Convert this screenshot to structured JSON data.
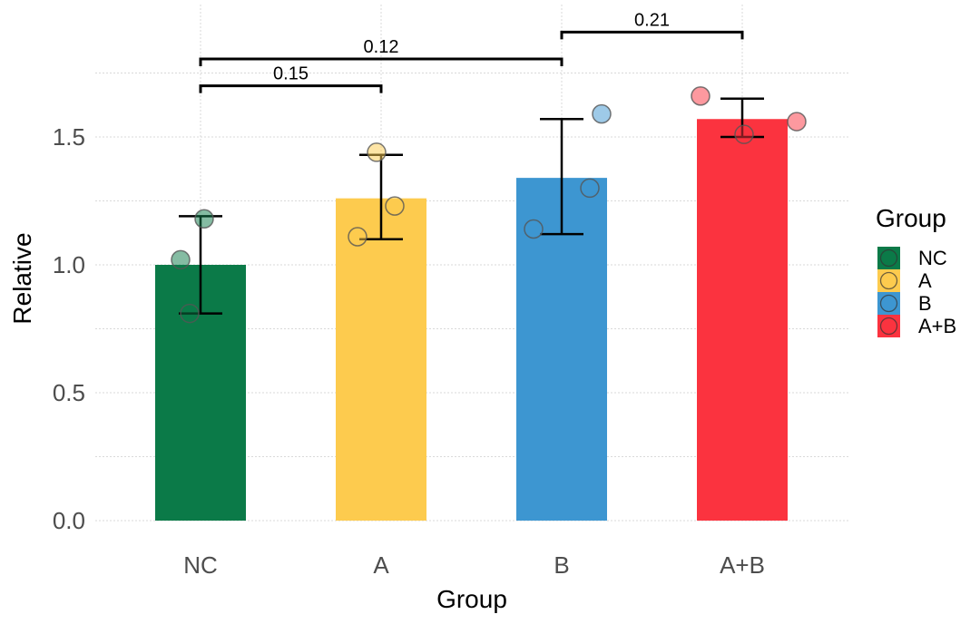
{
  "chart_data": {
    "type": "bar",
    "title": "",
    "xlabel": "Group",
    "ylabel": "Relative",
    "categories": [
      "NC",
      "A",
      "B",
      "A+B"
    ],
    "colors": [
      "#0b7a48",
      "#fdcb4e",
      "#3d96d1",
      "#fb333f"
    ],
    "values": [
      1.0,
      1.26,
      1.34,
      1.57
    ],
    "error_bars": [
      [
        0.81,
        1.19
      ],
      [
        1.1,
        1.43
      ],
      [
        1.12,
        1.57
      ],
      [
        1.5,
        1.65
      ]
    ],
    "points": [
      [
        1.02,
        1.18,
        0.81
      ],
      [
        1.44,
        1.23,
        1.11
      ],
      [
        1.59,
        1.3,
        1.14
      ],
      [
        1.66,
        1.56,
        1.51
      ]
    ],
    "ylim": [
      0,
      1.95
    ],
    "yticks": [
      "0.0",
      "0.5",
      "1.0",
      "1.5"
    ],
    "ytick_values": [
      0,
      0.5,
      1.0,
      1.5
    ],
    "grid": true,
    "comparisons": [
      {
        "from": "NC",
        "to": "A",
        "label": "0.15",
        "y": 1.7
      },
      {
        "from": "NC",
        "to": "B",
        "label": "0.12",
        "y": 1.805
      },
      {
        "from": "B",
        "to": "A+B",
        "label": "0.21",
        "y": 1.91
      }
    ],
    "legend": {
      "title": "Group",
      "position": "right",
      "entries": [
        "NC",
        "A",
        "B",
        "A+B"
      ]
    }
  }
}
